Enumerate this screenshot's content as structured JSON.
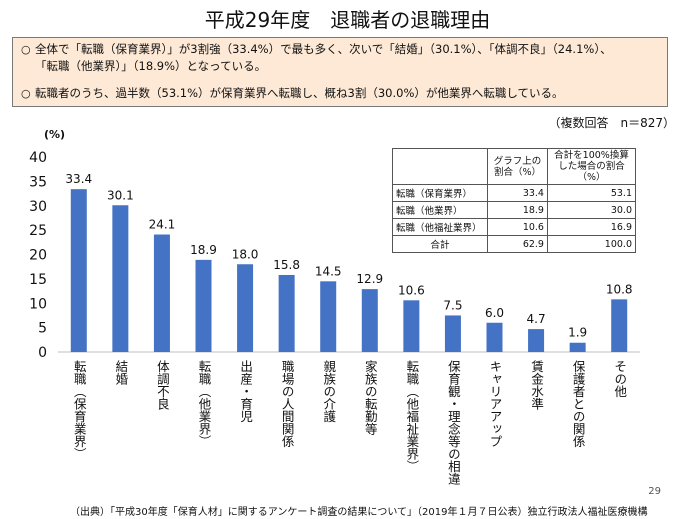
{
  "header": {
    "title": "平成29年度　退職者の退職理由"
  },
  "summary": {
    "bullet": "○",
    "line1": "全体で「転職（保育業界）」が3割強（33.4%）で最も多く、次いで「結婚」（30.1%）、「体調不良」（24.1%）、",
    "line2": "「転職（他業界）」（18.9%）となっている。",
    "line3": "転職者のうち、過半数（53.1%）が保育業界へ転職し、概ね3割（30.0%）が他業界へ転職している。"
  },
  "note": "（複数回答　n＝827）",
  "unit": "(%)",
  "chart_data": {
    "type": "bar",
    "title": "平成29年度　退職者の退職理由",
    "ylabel": "(%)",
    "ylim": [
      0,
      40
    ],
    "yticks": [
      0,
      5,
      10,
      15,
      20,
      25,
      30,
      35,
      40
    ],
    "categories": [
      "転職（保育業界）",
      "結婚",
      "体調不良",
      "転職（他業界）",
      "出産・育児",
      "職場の人間関係",
      "親族の介護",
      "家族の転勤等",
      "転職（他福祉業界）",
      "保育観・理念等の相違",
      "キャリアアップ",
      "賃金水準",
      "保護者との関係",
      "その他"
    ],
    "values": [
      33.4,
      30.1,
      24.1,
      18.9,
      18.0,
      15.8,
      14.5,
      12.9,
      10.6,
      7.5,
      6.0,
      4.7,
      1.9,
      10.8
    ],
    "value_labels": [
      "33.4",
      "30.1",
      "24.1",
      "18.9",
      "18.0",
      "15.8",
      "14.5",
      "12.9",
      "10.6",
      "7.5",
      "6.0",
      "4.7",
      "1.9",
      "10.8"
    ],
    "bar_color": "#4472c4",
    "grid": false
  },
  "table": {
    "headers": [
      "",
      "グラフ上の割合（%）",
      "合計を100%換算した場合の割合（%）"
    ],
    "rows": [
      {
        "label": "転職（保育業界）",
        "graph": "33.4",
        "normalized": "53.1"
      },
      {
        "label": "転職（他業界）",
        "graph": "18.9",
        "normalized": "30.0"
      },
      {
        "label": "転職（他福祉業界）",
        "graph": "10.6",
        "normalized": "16.9"
      },
      {
        "label": "合計",
        "graph": "62.9",
        "normalized": "100.0"
      }
    ]
  },
  "footer": {
    "page": "29",
    "source": "（出典）「平成30年度「保育人材」に関するアンケート調査の結果について」（2019年１月７日公表）独立行政法人福祉医療機構"
  }
}
